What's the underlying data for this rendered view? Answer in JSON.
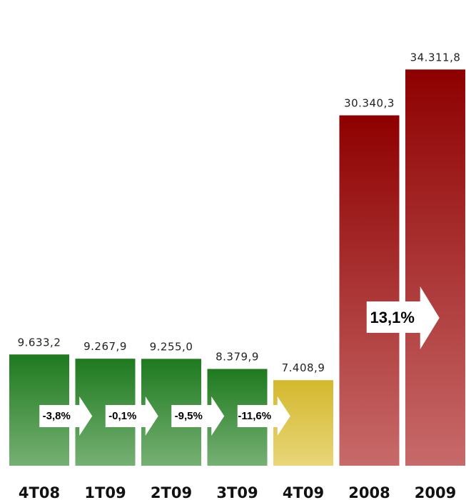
{
  "chart_data": {
    "type": "bar",
    "title": "",
    "xlabel": "",
    "ylabel": "",
    "ylim": [
      0,
      36000
    ],
    "categories": [
      "4T08",
      "1T09",
      "2T09",
      "3T09",
      "4T09",
      "2008",
      "2009"
    ],
    "values": [
      9633.2,
      9267.9,
      9255.0,
      8379.9,
      7408.9,
      30340.3,
      34311.8
    ],
    "value_labels": [
      "9.633,2",
      "9.267,9",
      "9.255,0",
      "8.379,9",
      "7.408,9",
      "30.340,3",
      "34.311,8"
    ],
    "bar_colors": [
      "green",
      "green",
      "green",
      "green",
      "yellow",
      "red",
      "red"
    ],
    "changes": [
      {
        "from": 0,
        "to": 1,
        "label": "-3,8%"
      },
      {
        "from": 1,
        "to": 2,
        "label": "-0,1%"
      },
      {
        "from": 2,
        "to": 3,
        "label": "-9,5%"
      },
      {
        "from": 3,
        "to": 4,
        "label": "-11,6%"
      },
      {
        "from": 5,
        "to": 6,
        "label": "13,1%"
      }
    ],
    "colors": {
      "green_top": "#1e7a1e",
      "green_bottom": "#76b074",
      "yellow_top": "#d4b82e",
      "yellow_bottom": "#e8d678",
      "red_top": "#8e0000",
      "red_bottom": "#c86a6a"
    },
    "grid": false,
    "legend": "none"
  }
}
